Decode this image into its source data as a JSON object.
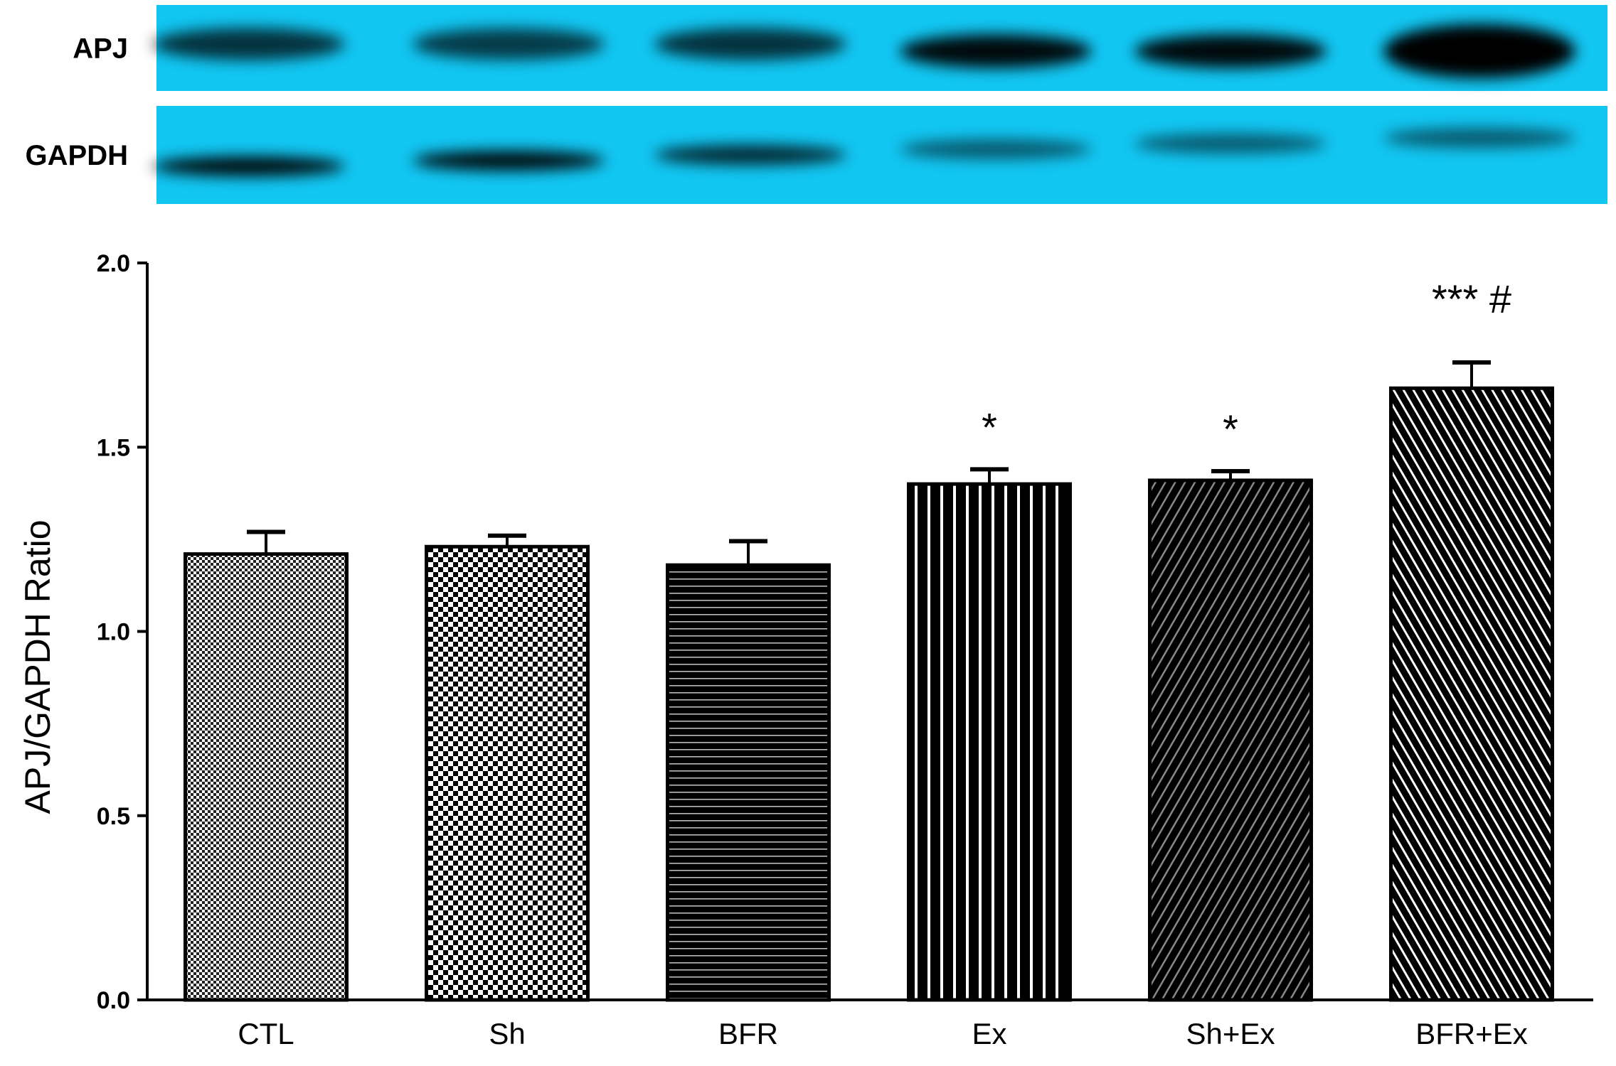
{
  "blot": {
    "background_color": "#12c6f2",
    "band_color": "#050505",
    "rows": [
      {
        "label": "APJ",
        "intensity": [
          0.75,
          0.7,
          0.75,
          0.95,
          0.95,
          1.0
        ]
      },
      {
        "label": "GAPDH",
        "intensity": [
          0.95,
          0.95,
          0.8,
          0.55,
          0.55,
          0.55
        ]
      }
    ]
  },
  "chart_data": {
    "type": "bar",
    "title": "",
    "xlabel": "",
    "ylabel": "APJ/GAPDH Ratio",
    "ylim": [
      0,
      2.0
    ],
    "yticks": [
      "0.0",
      "0.5",
      "1.0",
      "1.5",
      "2.0"
    ],
    "grid": false,
    "categories": [
      "CTL",
      "Sh",
      "BFR",
      "Ex",
      "Sh+Ex",
      "BFR+Ex"
    ],
    "values": [
      1.21,
      1.23,
      1.18,
      1.4,
      1.41,
      1.66
    ],
    "errors": [
      0.06,
      0.03,
      0.065,
      0.04,
      0.025,
      0.07
    ],
    "annotations": [
      "",
      "",
      "",
      "*",
      "*",
      "*** #"
    ],
    "patterns": [
      "fine-check",
      "check",
      "horizontal-lines",
      "vertical-lines",
      "dense-diagonal",
      "diagonal"
    ]
  }
}
